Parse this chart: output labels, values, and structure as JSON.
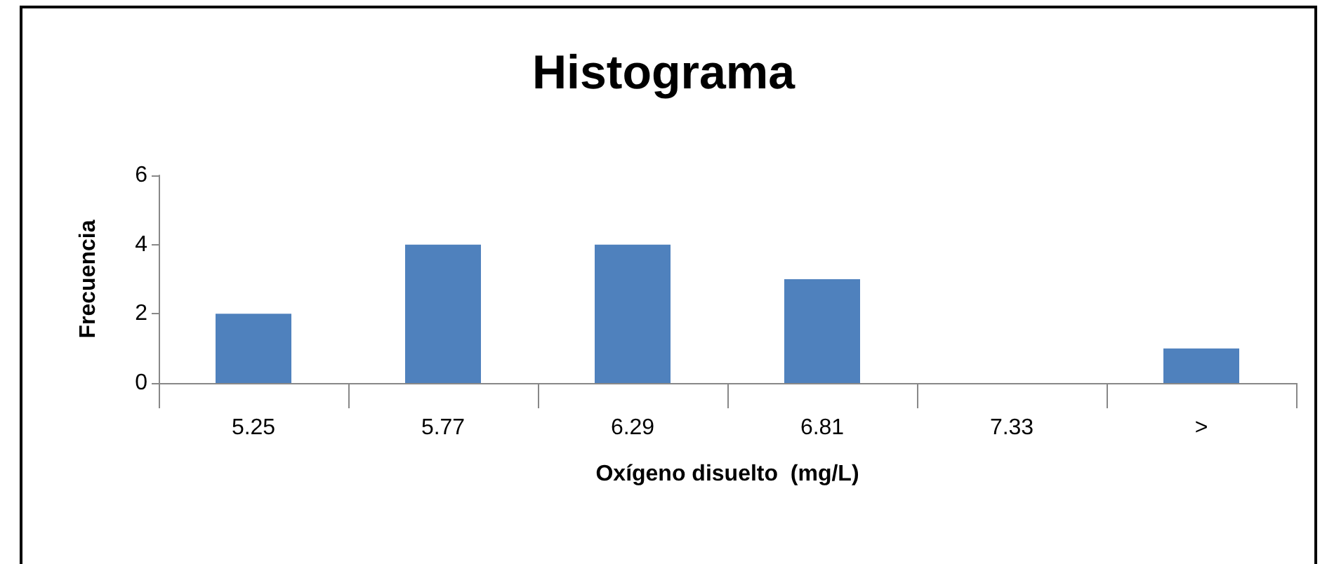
{
  "chart_data": {
    "type": "bar",
    "title": "Histograma",
    "xlabel": "Oxígeno disuelto  (mg/L)",
    "ylabel": "Frecuencia",
    "categories": [
      "5.25",
      "5.77",
      "6.29",
      "6.81",
      "7.33",
      ">"
    ],
    "values": [
      2,
      4,
      4,
      3,
      0,
      1
    ],
    "color": "#4f81bd",
    "ylim": [
      0,
      6
    ],
    "yticks": [
      0,
      2,
      4,
      6
    ]
  }
}
